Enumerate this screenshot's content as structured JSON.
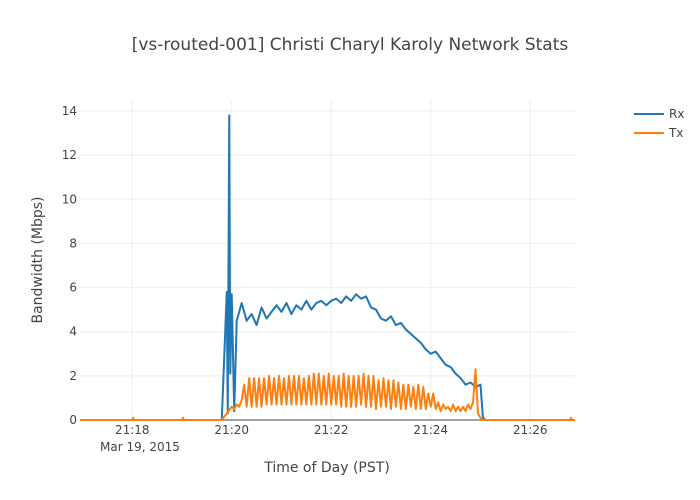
{
  "chart_data": {
    "type": "line",
    "title": "[vs-routed-001] Christi Charyl Karoly Network Stats",
    "xlabel": "Time of Day (PST)",
    "ylabel": "Bandwidth (Mbps)",
    "x_ticks": [
      "21:18",
      "21:20",
      "21:22",
      "21:24",
      "21:26"
    ],
    "x_tick_minutes": [
      1278,
      1280,
      1282,
      1284,
      1286
    ],
    "x_date_label": "Mar 19, 2015",
    "xlim_minutes": [
      1276.95,
      1286.9
    ],
    "ylim": [
      0,
      14.5
    ],
    "y_ticks": [
      0,
      2,
      4,
      6,
      8,
      10,
      12,
      14
    ],
    "legend_position": "top-right",
    "series": [
      {
        "name": "Rx",
        "color": "#1f77b4",
        "x": [
          1276.95,
          1279.8,
          1279.9,
          1279.92,
          1279.95,
          1279.97,
          1280.0,
          1280.05,
          1280.1,
          1280.15,
          1280.2,
          1280.3,
          1280.4,
          1280.5,
          1280.6,
          1280.7,
          1280.8,
          1280.9,
          1281.0,
          1281.1,
          1281.2,
          1281.3,
          1281.4,
          1281.5,
          1281.6,
          1281.7,
          1281.8,
          1281.9,
          1282.0,
          1282.1,
          1282.2,
          1282.3,
          1282.4,
          1282.5,
          1282.6,
          1282.7,
          1282.8,
          1282.9,
          1283.0,
          1283.1,
          1283.2,
          1283.3,
          1283.4,
          1283.5,
          1283.6,
          1283.7,
          1283.8,
          1283.9,
          1284.0,
          1284.1,
          1284.2,
          1284.3,
          1284.4,
          1284.5,
          1284.6,
          1284.7,
          1284.8,
          1284.9,
          1285.0,
          1285.05,
          1285.1,
          1286.9
        ],
        "y": [
          0,
          0,
          5.8,
          0.3,
          13.8,
          2.1,
          5.7,
          0.4,
          4.5,
          4.9,
          5.3,
          4.5,
          4.8,
          4.3,
          5.1,
          4.6,
          4.9,
          5.2,
          4.9,
          5.3,
          4.8,
          5.2,
          5.0,
          5.4,
          5.0,
          5.3,
          5.4,
          5.2,
          5.4,
          5.5,
          5.3,
          5.6,
          5.4,
          5.7,
          5.5,
          5.6,
          5.1,
          5.0,
          4.6,
          4.5,
          4.7,
          4.3,
          4.4,
          4.1,
          3.9,
          3.7,
          3.5,
          3.2,
          3.0,
          3.1,
          2.8,
          2.5,
          2.4,
          2.1,
          1.9,
          1.6,
          1.7,
          1.5,
          1.6,
          0.1,
          0,
          0
        ]
      },
      {
        "name": "Tx",
        "color": "#ff7f0e",
        "x": [
          1276.95,
          1278.0,
          1278.02,
          1278.04,
          1279.0,
          1279.02,
          1279.04,
          1279.8,
          1279.9,
          1280.0,
          1280.05,
          1280.1,
          1280.15,
          1280.2,
          1280.25,
          1280.3,
          1280.35,
          1280.4,
          1280.45,
          1280.5,
          1280.55,
          1280.6,
          1280.65,
          1280.7,
          1280.75,
          1280.8,
          1280.85,
          1280.9,
          1280.95,
          1281.0,
          1281.05,
          1281.1,
          1281.15,
          1281.2,
          1281.25,
          1281.3,
          1281.35,
          1281.4,
          1281.45,
          1281.5,
          1281.55,
          1281.6,
          1281.65,
          1281.7,
          1281.75,
          1281.8,
          1281.85,
          1281.9,
          1281.95,
          1282.0,
          1282.05,
          1282.1,
          1282.15,
          1282.2,
          1282.25,
          1282.3,
          1282.35,
          1282.4,
          1282.45,
          1282.5,
          1282.55,
          1282.6,
          1282.65,
          1282.7,
          1282.75,
          1282.8,
          1282.85,
          1282.9,
          1282.95,
          1283.0,
          1283.05,
          1283.1,
          1283.15,
          1283.2,
          1283.25,
          1283.3,
          1283.35,
          1283.4,
          1283.45,
          1283.5,
          1283.55,
          1283.6,
          1283.65,
          1283.7,
          1283.75,
          1283.8,
          1283.85,
          1283.9,
          1283.95,
          1284.0,
          1284.05,
          1284.1,
          1284.15,
          1284.2,
          1284.25,
          1284.3,
          1284.35,
          1284.4,
          1284.45,
          1284.5,
          1284.55,
          1284.6,
          1284.65,
          1284.7,
          1284.75,
          1284.8,
          1284.85,
          1284.9,
          1284.95,
          1285.0,
          1285.05,
          1285.1,
          1286.0,
          1286.8,
          1286.82,
          1286.84,
          1286.9
        ],
        "y": [
          0,
          0,
          0.1,
          0,
          0,
          0.1,
          0,
          0,
          0.3,
          0.6,
          0.5,
          0.7,
          0.6,
          0.9,
          1.6,
          0.6,
          1.9,
          0.6,
          1.9,
          0.6,
          1.9,
          0.6,
          1.9,
          0.7,
          2.0,
          0.7,
          1.9,
          0.7,
          2.0,
          0.7,
          1.9,
          0.7,
          2.0,
          0.7,
          2.0,
          0.7,
          2.0,
          0.7,
          1.9,
          0.7,
          2.0,
          0.7,
          2.1,
          0.7,
          2.1,
          0.7,
          2.0,
          0.7,
          2.1,
          0.7,
          2.0,
          0.7,
          2.0,
          0.6,
          2.1,
          0.6,
          2.0,
          0.6,
          2.0,
          0.6,
          2.0,
          0.7,
          2.1,
          0.6,
          2.0,
          0.6,
          2.0,
          0.5,
          1.8,
          0.6,
          1.9,
          0.6,
          1.8,
          0.5,
          1.8,
          0.6,
          1.7,
          0.5,
          1.6,
          0.5,
          1.6,
          0.6,
          1.5,
          0.5,
          1.6,
          0.5,
          1.5,
          0.5,
          1.2,
          0.6,
          1.2,
          0.5,
          0.8,
          0.4,
          0.7,
          0.5,
          0.6,
          0.4,
          0.7,
          0.4,
          0.6,
          0.4,
          0.6,
          0.4,
          0.7,
          0.5,
          0.8,
          2.3,
          0.3,
          0.1,
          0,
          0,
          0,
          0,
          0.1,
          0,
          0
        ]
      }
    ]
  }
}
